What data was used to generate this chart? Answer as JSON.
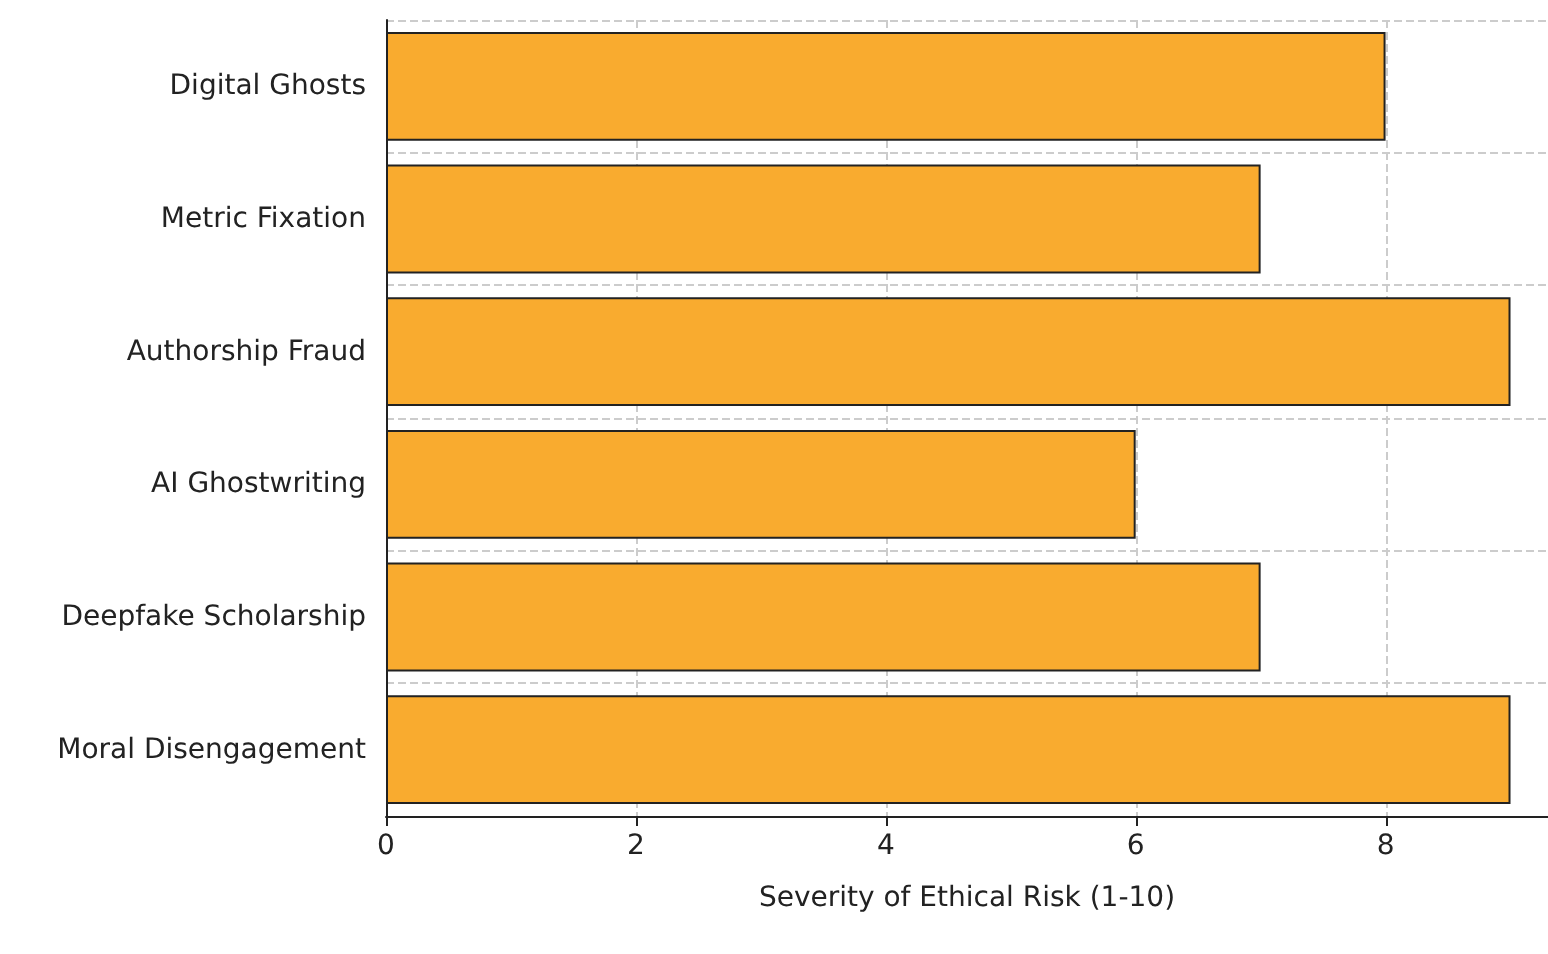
{
  "chart_data": {
    "type": "bar",
    "orientation": "horizontal",
    "categories": [
      "Digital Ghosts",
      "Metric Fixation",
      "Authorship Fraud",
      "AI Ghostwriting",
      "Deepfake Scholarship",
      "Moral Disengagement"
    ],
    "values": [
      8,
      7,
      9,
      6,
      7,
      9
    ],
    "color": "#f9ab2f",
    "xlabel": "Severity of Ethical Risk (1-10)",
    "xlim": [
      0,
      9.3
    ],
    "xticks": [
      0,
      2,
      4,
      6,
      8
    ],
    "grid": true
  }
}
